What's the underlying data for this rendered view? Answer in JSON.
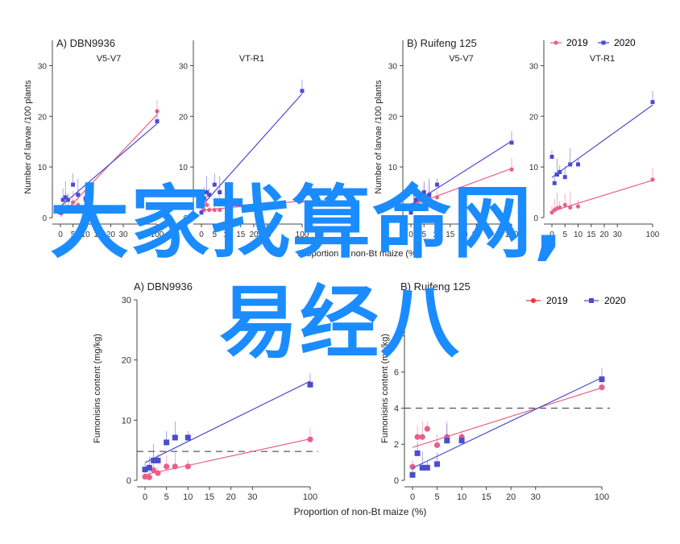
{
  "colors": {
    "y2019": "#e8608a",
    "y2020": "#4c4ccf",
    "y2019_legend_bottom": "#e23a3a",
    "axis": "#444444",
    "watermark": "#1a8cff"
  },
  "legend_top": {
    "y2019": "2019",
    "y2020": "2020"
  },
  "legend_bottom": {
    "y2019": "2019",
    "y2020": "2020"
  },
  "top": {
    "panelA_title": "A)  DBN9936",
    "panelB_title": "B)  Ruifeng 125",
    "ylabel_left": "Number of larvae /100 plants",
    "ylabel_right": "Number of larvae /100 plants",
    "xlabel": "Proportion of non-Bt maize (%)"
  },
  "bottom": {
    "panelA_title": "A)  DBN9936",
    "panelB_title": "B)  Ruifeng 125",
    "ylabel": "Fumonisins content (mg/kg)",
    "xlabel": "Proportion of non-Bt maize (%)"
  },
  "watermark": {
    "line1": "大家找算命网,",
    "line2": "易经八"
  },
  "chart_data": [
    {
      "type": "line",
      "panel": "top-A-1",
      "subtitle": "V5-V7",
      "x": [
        0,
        1,
        2,
        3,
        5,
        7,
        10,
        100
      ],
      "xticks": [
        0,
        5,
        10,
        15,
        20,
        30,
        100
      ],
      "ylim": [
        0,
        35
      ],
      "yticks": [
        0,
        10,
        20,
        30
      ],
      "series": [
        {
          "name": "2019",
          "values": [
            1,
            1.5,
            2,
            2,
            3,
            2.5,
            3.5,
            21
          ]
        },
        {
          "name": "2020",
          "values": [
            1,
            3.5,
            4,
            3.5,
            6.5,
            4.5,
            3.8,
            19
          ]
        }
      ]
    },
    {
      "type": "line",
      "panel": "top-A-2",
      "subtitle": "VT-R1",
      "x": [
        0,
        1,
        2,
        3,
        5,
        7,
        10,
        100
      ],
      "xticks": [
        0,
        5,
        10,
        15,
        20,
        30,
        100
      ],
      "ylim": [
        0,
        35
      ],
      "yticks": [
        0,
        10,
        20,
        30
      ],
      "series": [
        {
          "name": "2019",
          "values": [
            1,
            1.5,
            2.5,
            1.5,
            1.5,
            1.5,
            2,
            3.3
          ]
        },
        {
          "name": "2020",
          "values": [
            1,
            3.8,
            5,
            4.5,
            6.5,
            5,
            5.5,
            25
          ]
        }
      ]
    },
    {
      "type": "line",
      "panel": "top-B-1",
      "subtitle": "V5-V7",
      "x": [
        0,
        1,
        2,
        3,
        5,
        7,
        10,
        100
      ],
      "xticks": [
        0,
        5,
        10,
        15,
        20,
        30,
        100
      ],
      "ylim": [
        0,
        35
      ],
      "yticks": [
        0,
        10,
        20,
        30
      ],
      "series": [
        {
          "name": "2019",
          "values": [
            1,
            2,
            3,
            3.5,
            4.5,
            4,
            4,
            9.5
          ]
        },
        {
          "name": "2020",
          "values": [
            1,
            2.5,
            3.5,
            4,
            5,
            4.5,
            6.5,
            14.8
          ]
        }
      ]
    },
    {
      "type": "line",
      "panel": "top-B-2",
      "subtitle": "VT-R1",
      "x": [
        0,
        1,
        2,
        3,
        5,
        7,
        10,
        100
      ],
      "xticks": [
        0,
        5,
        10,
        15,
        20,
        30,
        100
      ],
      "ylim": [
        0,
        35
      ],
      "yticks": [
        0,
        10,
        20,
        30
      ],
      "series": [
        {
          "name": "2019",
          "values": [
            1,
            1.5,
            1.8,
            2,
            2.5,
            2,
            2.2,
            7.5
          ]
        },
        {
          "name": "2020",
          "values": [
            12,
            6.8,
            8.5,
            9,
            8,
            10.5,
            10.5,
            22.8
          ]
        }
      ]
    },
    {
      "type": "line",
      "panel": "bottom-A",
      "x": [
        0,
        1,
        2,
        3,
        5,
        7,
        10,
        100
      ],
      "xticks": [
        0,
        5,
        10,
        15,
        20,
        30,
        100
      ],
      "ylim": [
        0,
        30
      ],
      "yticks": [
        0,
        10,
        20,
        30
      ],
      "reference_line": 4.8,
      "series": [
        {
          "name": "2019",
          "values": [
            0.6,
            0.5,
            1.7,
            1.2,
            2.3,
            2.3,
            2.3,
            6.8
          ]
        },
        {
          "name": "2020",
          "values": [
            1.8,
            2.1,
            3.3,
            3.3,
            6.3,
            7.1,
            7.1,
            15.9
          ]
        }
      ]
    },
    {
      "type": "line",
      "panel": "bottom-B",
      "x": [
        0,
        1,
        2,
        3,
        5,
        7,
        10,
        100
      ],
      "xticks": [
        0,
        5,
        10,
        15,
        20,
        30,
        100
      ],
      "ylim": [
        0,
        10
      ],
      "yticks": [
        0,
        2,
        4,
        6,
        8
      ],
      "reference_line": 4,
      "series": [
        {
          "name": "2019",
          "values": [
            0.75,
            2.4,
            2.4,
            2.85,
            1.95,
            2.4,
            2.4,
            5.15
          ]
        },
        {
          "name": "2020",
          "values": [
            0.3,
            1.5,
            0.7,
            0.7,
            0.9,
            2.2,
            2.2,
            5.6
          ]
        }
      ]
    }
  ]
}
